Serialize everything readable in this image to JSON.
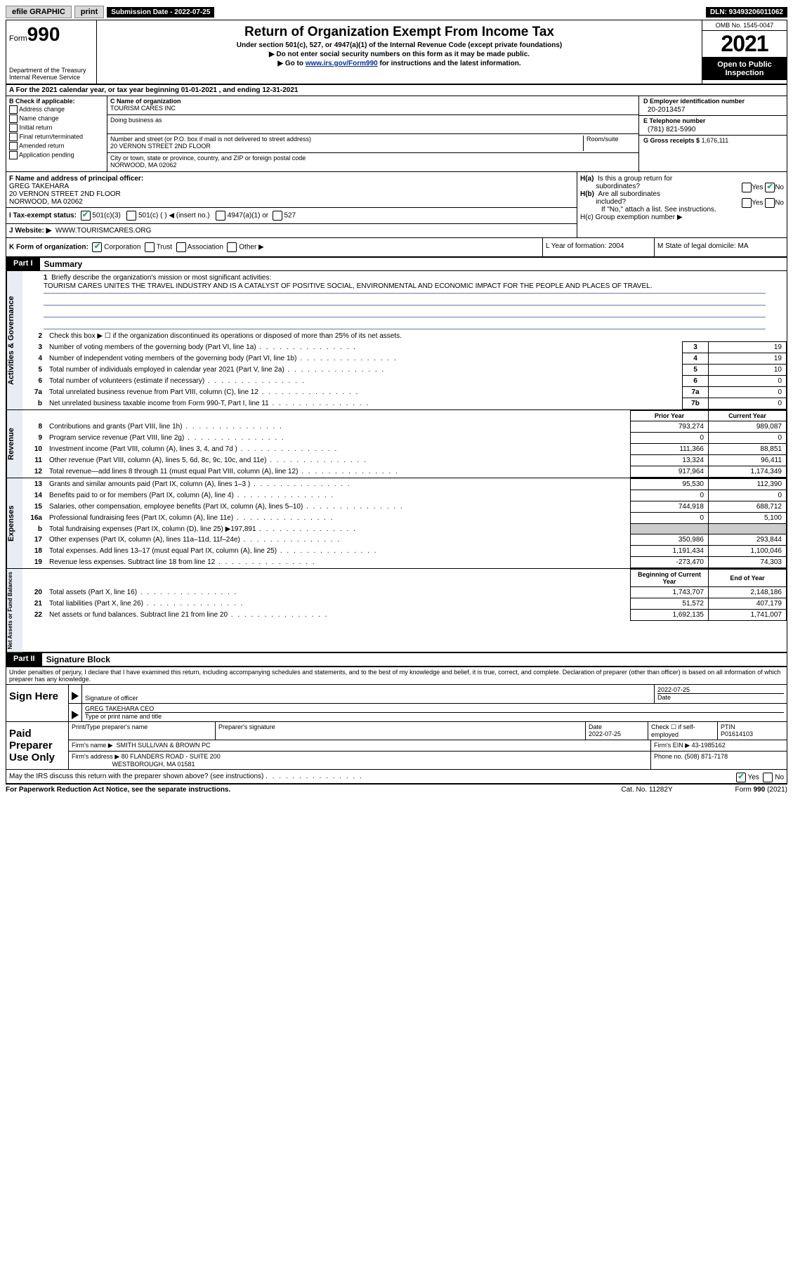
{
  "topbar": {
    "efile": "efile GRAPHIC",
    "print": "print",
    "submission": "Submission Date - 2022-07-25",
    "dln": "DLN: 93493206011062"
  },
  "header": {
    "form_prefix": "Form",
    "form_num": "990",
    "dept": "Department of the Treasury",
    "irs": "Internal Revenue Service",
    "title": "Return of Organization Exempt From Income Tax",
    "sub1": "Under section 501(c), 527, or 4947(a)(1) of the Internal Revenue Code (except private foundations)",
    "note1": "▶ Do not enter social security numbers on this form as it may be made public.",
    "note2_pre": "▶ Go to ",
    "note2_link": "www.irs.gov/Form990",
    "note2_post": " for instructions and the latest information.",
    "omb": "OMB No. 1545-0047",
    "year": "2021",
    "inspect": "Open to Public Inspection"
  },
  "section_a": "A For the 2021 calendar year, or tax year beginning 01-01-2021   , and ending 12-31-2021",
  "col_b": {
    "label": "B Check if applicable:",
    "items": [
      "Address change",
      "Name change",
      "Initial return",
      "Final return/terminated",
      "Amended return",
      "Application pending"
    ]
  },
  "col_c": {
    "name_lbl": "C Name of organization",
    "name": "TOURISM CARES INC",
    "dba_lbl": "Doing business as",
    "dba": "",
    "street_lbl": "Number and street (or P.O. box if mail is not delivered to street address)",
    "street": "20 VERNON STREET 2ND FLOOR",
    "room_lbl": "Room/suite",
    "city_lbl": "City or town, state or province, country, and ZIP or foreign postal code",
    "city": "NORWOOD, MA  02062"
  },
  "col_d": {
    "ein_lbl": "D Employer identification number",
    "ein": "20-2013457",
    "phone_lbl": "E Telephone number",
    "phone": "(781) 821-5990",
    "gross_lbl": "G Gross receipts $",
    "gross": "1,676,111"
  },
  "row_f": {
    "f_lbl": "F Name and address of principal officer:",
    "officer": "GREG TAKEHARA",
    "addr1": "20 VERNON STREET 2ND FLOOR",
    "addr2": "NORWOOD, MA  02062",
    "i_lbl": "I Tax-exempt status:",
    "i_501c3": "501(c)(3)",
    "i_501c": "501(c) (  ) ◀ (insert no.)",
    "i_4947": "4947(a)(1) or",
    "i_527": "527",
    "j_lbl": "J Website: ▶",
    "j_val": "WWW.TOURISMCARES.ORG",
    "ha": "H(a)  Is this a group return for subordinates?",
    "hb": "H(b)  Are all subordinates included?",
    "hb_note": "If \"No,\" attach a list. See instructions.",
    "hc": "H(c)  Group exemption number ▶"
  },
  "row_k": {
    "k": "K Form of organization:",
    "corp": "Corporation",
    "trust": "Trust",
    "assoc": "Association",
    "other": "Other ▶",
    "l": "L Year of formation: 2004",
    "m": "M State of legal domicile: MA"
  },
  "part1": {
    "hdr": "Part I",
    "title": "Summary",
    "vtab_ag": "Activities & Governance",
    "vtab_rev": "Revenue",
    "vtab_exp": "Expenses",
    "vtab_net": "Net Assets or Fund Balances",
    "q1": "Briefly describe the organization's mission or most significant activities:",
    "mission": "TOURISM CARES UNITES THE TRAVEL INDUSTRY AND IS A CATALYST OF POSITIVE SOCIAL, ENVIRONMENTAL AND ECONOMIC IMPACT FOR THE PEOPLE AND PLACES OF TRAVEL.",
    "q2": "Check this box ▶ ☐ if the organization discontinued its operations or disposed of more than 25% of its net assets.",
    "rows_ag": [
      {
        "n": "3",
        "lbl": "Number of voting members of the governing body (Part VI, line 1a)",
        "box": "3",
        "val": "19"
      },
      {
        "n": "4",
        "lbl": "Number of independent voting members of the governing body (Part VI, line 1b)",
        "box": "4",
        "val": "19"
      },
      {
        "n": "5",
        "lbl": "Total number of individuals employed in calendar year 2021 (Part V, line 2a)",
        "box": "5",
        "val": "10"
      },
      {
        "n": "6",
        "lbl": "Total number of volunteers (estimate if necessary)",
        "box": "6",
        "val": "0"
      },
      {
        "n": "7a",
        "lbl": "Total unrelated business revenue from Part VIII, column (C), line 12",
        "box": "7a",
        "val": "0"
      },
      {
        "n": "b",
        "lbl": "Net unrelated business taxable income from Form 990-T, Part I, line 11",
        "box": "7b",
        "val": "0"
      }
    ],
    "hdr_prior": "Prior Year",
    "hdr_curr": "Current Year",
    "rows_rev": [
      {
        "n": "8",
        "lbl": "Contributions and grants (Part VIII, line 1h)",
        "p": "793,274",
        "c": "989,087"
      },
      {
        "n": "9",
        "lbl": "Program service revenue (Part VIII, line 2g)",
        "p": "0",
        "c": "0"
      },
      {
        "n": "10",
        "lbl": "Investment income (Part VIII, column (A), lines 3, 4, and 7d )",
        "p": "111,366",
        "c": "88,851"
      },
      {
        "n": "11",
        "lbl": "Other revenue (Part VIII, column (A), lines 5, 6d, 8c, 9c, 10c, and 11e)",
        "p": "13,324",
        "c": "96,411"
      },
      {
        "n": "12",
        "lbl": "Total revenue—add lines 8 through 11 (must equal Part VIII, column (A), line 12)",
        "p": "917,964",
        "c": "1,174,349"
      }
    ],
    "rows_exp": [
      {
        "n": "13",
        "lbl": "Grants and similar amounts paid (Part IX, column (A), lines 1–3 )",
        "p": "95,530",
        "c": "112,390"
      },
      {
        "n": "14",
        "lbl": "Benefits paid to or for members (Part IX, column (A), line 4)",
        "p": "0",
        "c": "0"
      },
      {
        "n": "15",
        "lbl": "Salaries, other compensation, employee benefits (Part IX, column (A), lines 5–10)",
        "p": "744,918",
        "c": "688,712"
      },
      {
        "n": "16a",
        "lbl": "Professional fundraising fees (Part IX, column (A), line 11e)",
        "p": "0",
        "c": "5,100"
      },
      {
        "n": "b",
        "lbl": "Total fundraising expenses (Part IX, column (D), line 25) ▶197,891",
        "p": "",
        "c": "",
        "shade": true
      },
      {
        "n": "17",
        "lbl": "Other expenses (Part IX, column (A), lines 11a–11d, 11f–24e)",
        "p": "350,986",
        "c": "293,844"
      },
      {
        "n": "18",
        "lbl": "Total expenses. Add lines 13–17 (must equal Part IX, column (A), line 25)",
        "p": "1,191,434",
        "c": "1,100,046"
      },
      {
        "n": "19",
        "lbl": "Revenue less expenses. Subtract line 18 from line 12",
        "p": "-273,470",
        "c": "74,303"
      }
    ],
    "hdr_beg": "Beginning of Current Year",
    "hdr_end": "End of Year",
    "rows_net": [
      {
        "n": "20",
        "lbl": "Total assets (Part X, line 16)",
        "p": "1,743,707",
        "c": "2,148,186"
      },
      {
        "n": "21",
        "lbl": "Total liabilities (Part X, line 26)",
        "p": "51,572",
        "c": "407,179"
      },
      {
        "n": "22",
        "lbl": "Net assets or fund balances. Subtract line 21 from line 20",
        "p": "1,692,135",
        "c": "1,741,007"
      }
    ]
  },
  "part2": {
    "hdr": "Part II",
    "title": "Signature Block",
    "decl": "Under penalties of perjury, I declare that I have examined this return, including accompanying schedules and statements, and to the best of my knowledge and belief, it is true, correct, and complete. Declaration of preparer (other than officer) is based on all information of which preparer has any knowledge.",
    "sign_here": "Sign Here",
    "sig_officer": "Signature of officer",
    "sig_date": "2022-07-25",
    "date_lbl": "Date",
    "officer_name": "GREG TAKEHARA  CEO",
    "type_name": "Type or print name and title",
    "paid": "Paid Preparer Use Only",
    "prep_name_lbl": "Print/Type preparer's name",
    "prep_sig_lbl": "Preparer's signature",
    "prep_date_lbl": "Date",
    "prep_date": "2022-07-25",
    "check_self": "Check ☐ if self-employed",
    "ptin_lbl": "PTIN",
    "ptin": "P01614103",
    "firm_name_lbl": "Firm's name    ▶",
    "firm_name": "SMITH SULLIVAN & BROWN PC",
    "firm_ein_lbl": "Firm's EIN ▶",
    "firm_ein": "43-1985162",
    "firm_addr_lbl": "Firm's address ▶",
    "firm_addr1": "80 FLANDERS ROAD - SUITE 200",
    "firm_addr2": "WESTBOROUGH, MA  01581",
    "firm_phone_lbl": "Phone no.",
    "firm_phone": "(508) 871-7178",
    "discuss": "May the IRS discuss this return with the preparer shown above? (see instructions)"
  },
  "footer": {
    "l": "For Paperwork Reduction Act Notice, see the separate instructions.",
    "m": "Cat. No. 11282Y",
    "r": "Form 990 (2021)"
  }
}
